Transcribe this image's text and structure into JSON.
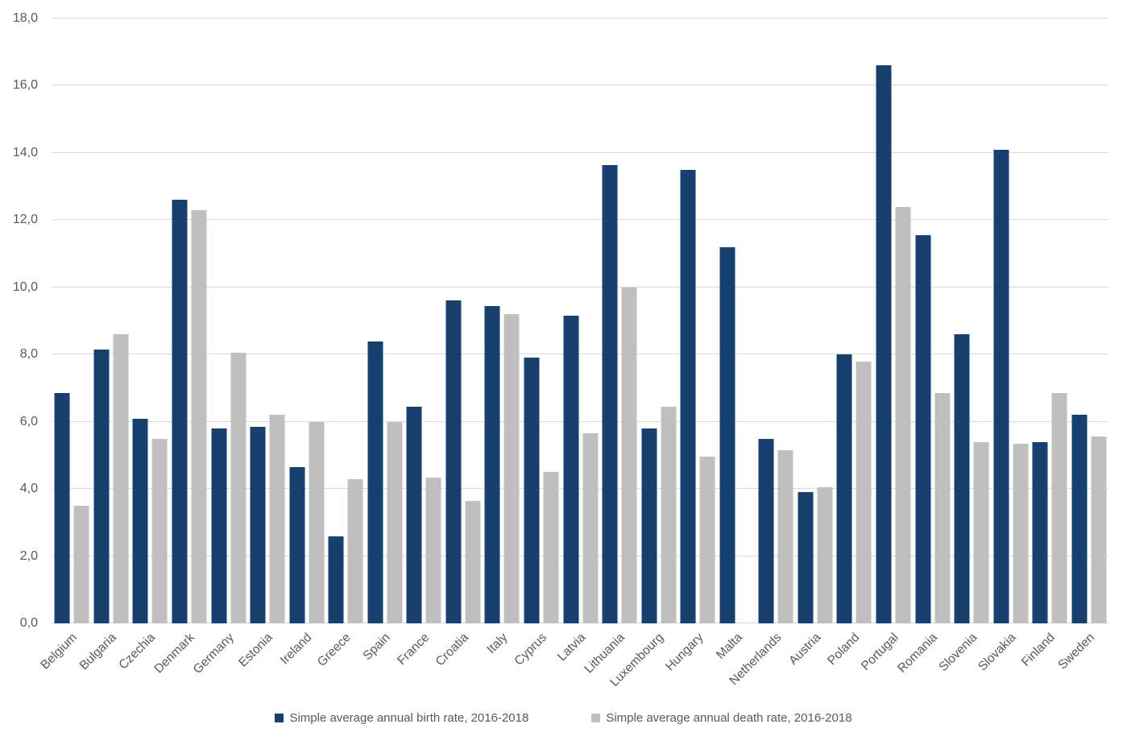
{
  "chart_data": {
    "type": "bar",
    "title": "",
    "xlabel": "",
    "ylabel": "",
    "categories": [
      "Belgium",
      "Bulgaria",
      "Czechia",
      "Denmark",
      "Germany",
      "Estonia",
      "Ireland",
      "Greece",
      "Spain",
      "France",
      "Croatia",
      "Italy",
      "Cyprus",
      "Latvia",
      "Lithuania",
      "Luxembourg",
      "Hungary",
      "Malta",
      "Netherlands",
      "Austria",
      "Poland",
      "Portugal",
      "Romania",
      "Slovenia",
      "Slovakia",
      "Finland",
      "Sweden"
    ],
    "series": [
      {
        "name": "Simple average annual birth rate, 2016-2018",
        "color": "#17406F",
        "values": [
          6.85,
          8.15,
          6.1,
          12.6,
          5.8,
          5.85,
          4.65,
          2.6,
          8.4,
          6.45,
          9.6,
          9.45,
          7.9,
          9.15,
          13.65,
          5.8,
          13.5,
          11.2,
          5.5,
          3.9,
          8.0,
          16.6,
          11.55,
          8.6,
          14.1,
          5.4,
          6.2
        ]
      },
      {
        "name": "Simple average annual death rate, 2016-2018",
        "color": "#BFBFBF",
        "values": [
          3.5,
          8.6,
          5.5,
          12.3,
          8.05,
          6.2,
          6.0,
          4.3,
          6.0,
          4.35,
          3.65,
          9.2,
          4.5,
          5.65,
          10.0,
          6.45,
          4.95,
          null,
          5.15,
          4.05,
          7.8,
          12.4,
          6.85,
          5.4,
          5.35,
          6.85,
          5.55
        ]
      }
    ],
    "ylim": [
      0,
      18
    ],
    "y_tick_step": 2,
    "y_tick_labels": [
      "0,0",
      "2,0",
      "4,0",
      "6,0",
      "8,0",
      "10,0",
      "12,0",
      "14,0",
      "16,0",
      "18,0"
    ],
    "grid": "horizontal",
    "legend_position": "bottom",
    "colors": {
      "background": "#FFFFFF",
      "gridline": "#D9D9D9",
      "axis_text": "#595959"
    }
  }
}
